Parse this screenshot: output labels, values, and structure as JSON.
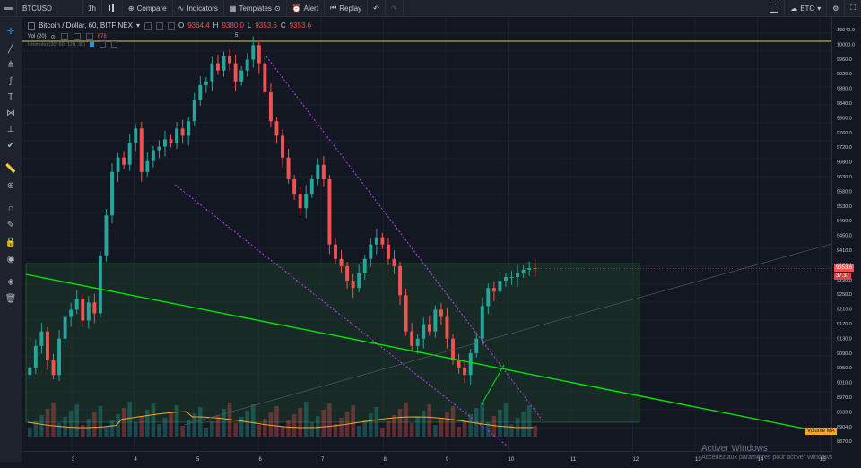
{
  "toolbar": {
    "symbol": "BTCUSD",
    "interval": "1h",
    "compare": "Compare",
    "indicators": "Indicators",
    "templates": "Templates",
    "alert": "Alert",
    "replay": "Replay",
    "currency": "BTC"
  },
  "legend": {
    "title": "Bitcoin / Dollar, 60, BITFINEX",
    "o_label": "O",
    "o_value": "9364.4",
    "h_label": "H",
    "h_value": "9380.0",
    "l_label": "L",
    "l_value": "9353.6",
    "c_label": "C",
    "c_value": "9353.6",
    "vol_label": "Vol (20)",
    "vol_value": "678",
    "ichimoku_label": "Ichimoku (20, 60, 120, 30)",
    "marker": "5"
  },
  "price_axis": {
    "labels": [
      "10040.0",
      "10000.0",
      "9960.0",
      "9920.0",
      "9880.0",
      "9840.0",
      "9800.0",
      "9760.0",
      "9720.0",
      "9680.0",
      "9630.0",
      "9580.0",
      "9530.0",
      "9490.0",
      "9450.0",
      "9410.0",
      "9370.0",
      "9290.0",
      "9250.0",
      "9210.0",
      "9170.0",
      "9130.0",
      "9090.0",
      "9050.0",
      "9010.0",
      "8970.0",
      "8930.0",
      "8904.0",
      "8870.0"
    ],
    "current_price": "9353.6",
    "current_change": "37.37"
  },
  "time_axis": {
    "labels": [
      "3",
      "4",
      "5",
      "6",
      "7",
      "8",
      "9",
      "10",
      "11",
      "12",
      "13",
      "14",
      "15"
    ]
  },
  "overlay": {
    "volume_ma": "Volume MA",
    "activate_title": "Activer Windows",
    "activate_sub": "Accédez aux paramètres pour activer Windows"
  },
  "colors": {
    "up": "#26a69a",
    "down": "#ef5350",
    "trend": "#00e600",
    "channel": "#c040ff",
    "zone": "#1f4d2e",
    "vol_ma": "#f5a623"
  },
  "chart_data": {
    "type": "candlestick",
    "title": "Bitcoin / Dollar, 60, BITFINEX",
    "ylim": [
      8860,
      10060
    ],
    "close_series": [
      9080,
      9140,
      9180,
      9100,
      9060,
      9160,
      9220,
      9240,
      9270,
      9210,
      9260,
      9230,
      9390,
      9500,
      9620,
      9660,
      9640,
      9700,
      9740,
      9620,
      9650,
      9680,
      9690,
      9710,
      9700,
      9740,
      9720,
      9760,
      9820,
      9860,
      9870,
      9920,
      9900,
      9940,
      9920,
      9870,
      9900,
      9930,
      9970,
      9920,
      9840,
      9760,
      9720,
      9660,
      9600,
      9560,
      9520,
      9560,
      9600,
      9640,
      9600,
      9420,
      9380,
      9360,
      9320,
      9300,
      9340,
      9380,
      9420,
      9440,
      9420,
      9380,
      9360,
      9280,
      9180,
      9140,
      9160,
      9200,
      9180,
      9240,
      9220,
      9160,
      9100,
      9080,
      9060,
      9120,
      9160,
      9250,
      9300,
      9290,
      9320,
      9330,
      9330,
      9340,
      9350,
      9355,
      9353.6
    ],
    "annotations": [
      "Volume MA"
    ]
  }
}
